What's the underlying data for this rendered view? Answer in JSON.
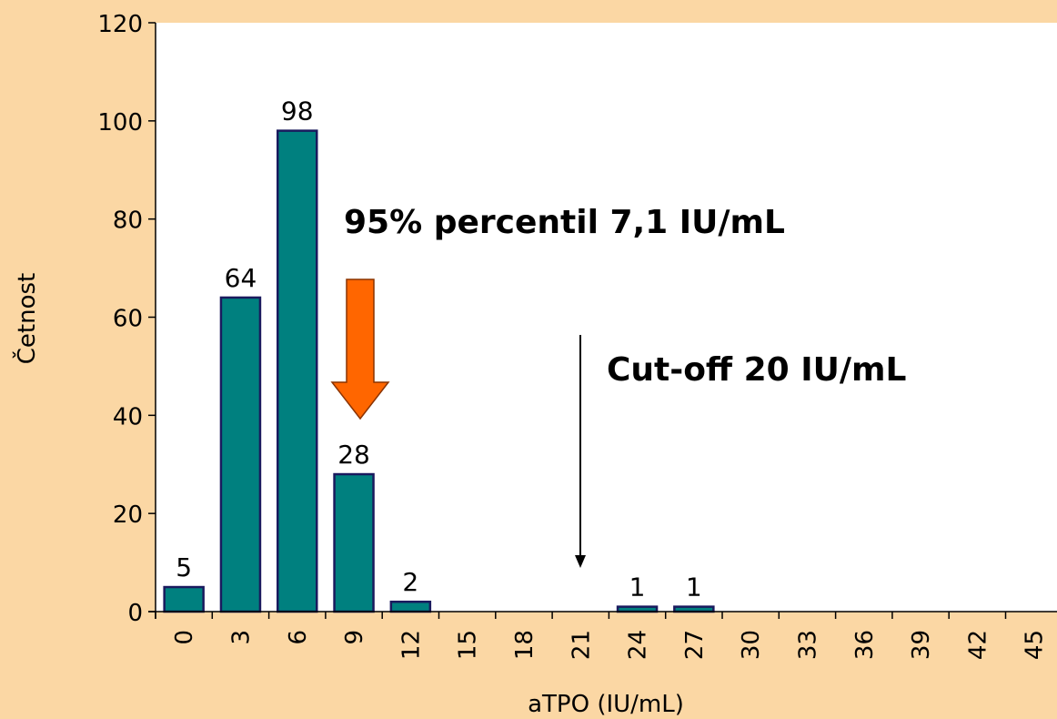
{
  "chart_data": {
    "type": "bar",
    "title": "",
    "xlabel": "aTPO (IU/mL)",
    "ylabel": "Četnost",
    "categories": [
      "0",
      "3",
      "6",
      "9",
      "12",
      "15",
      "18",
      "21",
      "24",
      "27",
      "30",
      "33",
      "36",
      "39",
      "42",
      "45"
    ],
    "values": [
      5,
      64,
      98,
      28,
      2,
      0,
      0,
      0,
      1,
      1,
      0,
      0,
      0,
      0,
      0,
      0
    ],
    "data_labels": [
      "5",
      "64",
      "98",
      "28",
      "2",
      "",
      "",
      "",
      "1",
      "1",
      "",
      "",
      "",
      "",
      "",
      ""
    ],
    "ylim": [
      0,
      120
    ],
    "yticks": [
      0,
      20,
      40,
      60,
      80,
      100,
      120
    ],
    "grid": false,
    "legend": "none",
    "annotations": [
      {
        "id": "percentile",
        "text": "95% percentil 7,1 IU/mL"
      },
      {
        "id": "cutoff",
        "text": "Cut-off 20 IU/mL"
      }
    ],
    "colors": {
      "background": "#fbd7a4",
      "plot_area": "#ffffff",
      "bar_fill": "#00807f",
      "bar_stroke": "#1a1a5e",
      "arrow_fill": "#ff6600",
      "arrow_stroke": "#8a3300"
    }
  }
}
